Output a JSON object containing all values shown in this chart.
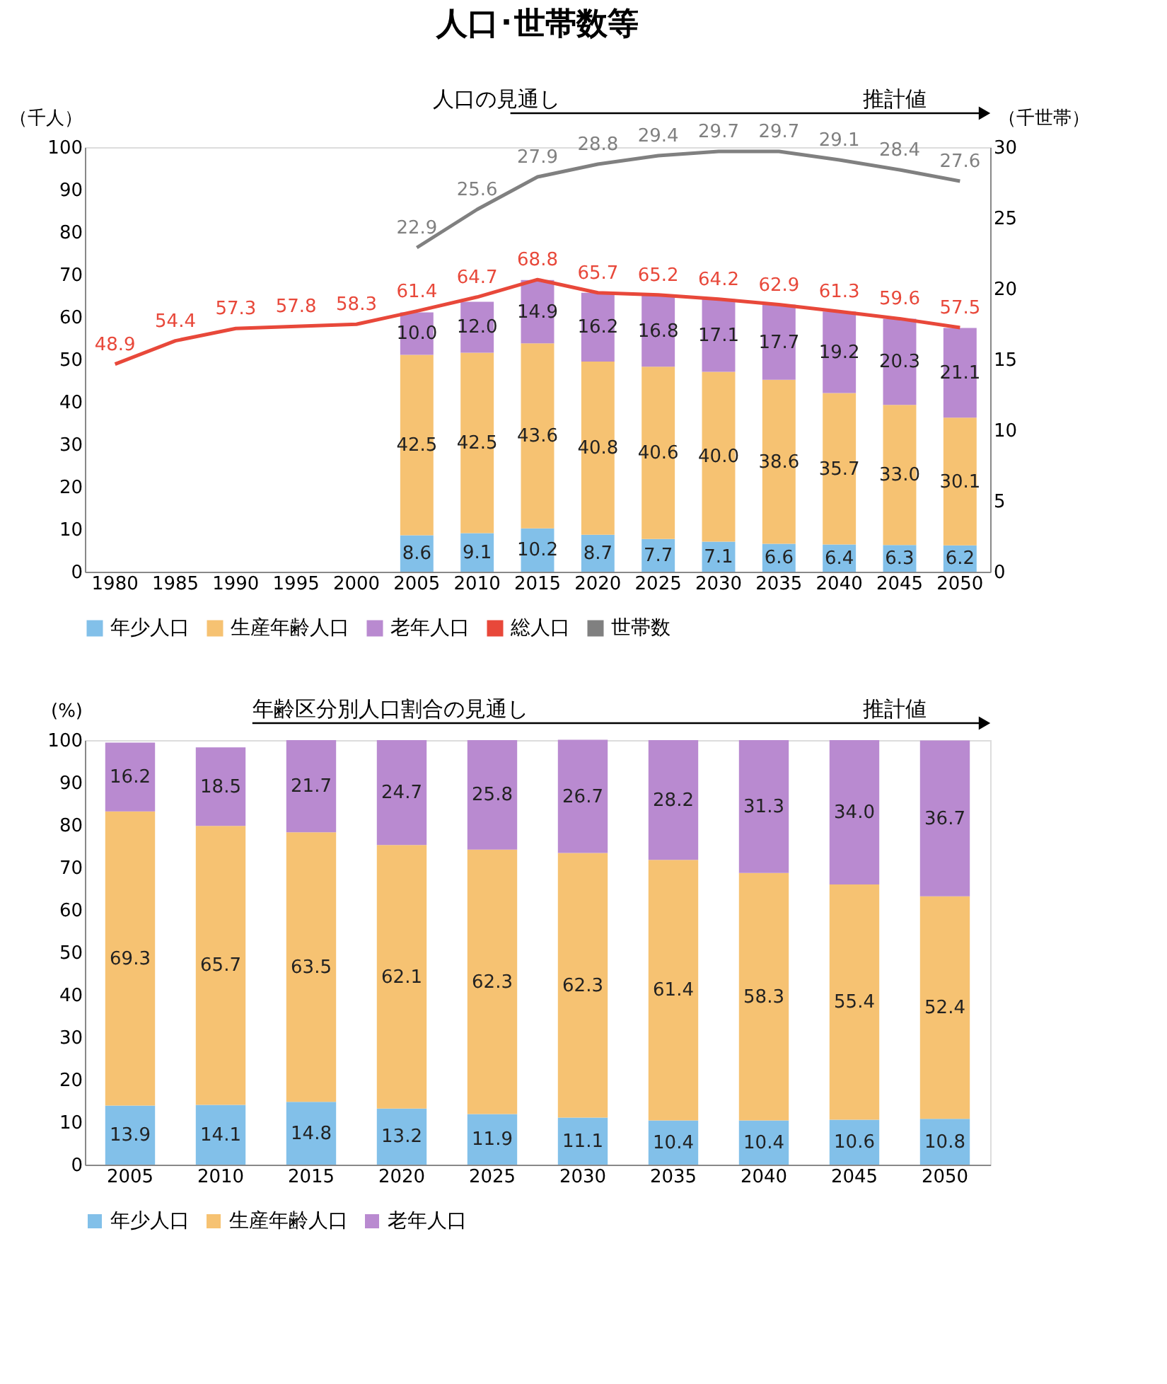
{
  "chart_data": [
    {
      "type": "bar",
      "title": "人口･世帯数等",
      "stacked": true,
      "legend": "bottom",
      "ylabel": "（千人）",
      "y2label": "（千世帯）",
      "categories": [
        "1980",
        "1985",
        "1990",
        "1995",
        "2000",
        "2005",
        "2010",
        "2015",
        "2020",
        "2025",
        "2030",
        "2035",
        "2040",
        "2045",
        "2050"
      ],
      "ylim": [
        0,
        100
      ],
      "yticks": [
        0,
        10,
        20,
        30,
        40,
        50,
        60,
        70,
        80,
        90,
        100
      ],
      "y2lim": [
        0,
        30
      ],
      "y2ticks": [
        0,
        5,
        10,
        15,
        20,
        25,
        30
      ],
      "annotations": [
        "人口の見通し",
        "推計値"
      ],
      "series": [
        {
          "name": "年少人口",
          "color": "#82c0e9",
          "values": [
            null,
            null,
            null,
            null,
            null,
            8.6,
            9.1,
            10.2,
            8.7,
            7.7,
            7.1,
            6.6,
            6.4,
            6.3,
            6.2
          ],
          "value_labels": [
            null,
            null,
            null,
            null,
            null,
            "8.6",
            "9.1",
            "10.2",
            "8.7",
            "7.7",
            "7.1",
            "6.6",
            "6.4",
            "6.3",
            "6.2"
          ]
        },
        {
          "name": "生産年齢人口",
          "color": "#f6c272",
          "values": [
            null,
            null,
            null,
            null,
            null,
            42.5,
            42.5,
            43.6,
            40.8,
            40.6,
            40.0,
            38.6,
            35.7,
            33.0,
            30.1
          ],
          "value_labels": [
            null,
            null,
            null,
            null,
            null,
            "42.5",
            "42.5",
            "43.6",
            "40.8",
            "40.6",
            "40.0",
            "38.6",
            "35.7",
            "33.0",
            "30.1"
          ]
        },
        {
          "name": "老年人口",
          "color": "#b98ad0",
          "values": [
            null,
            null,
            null,
            null,
            null,
            10.0,
            12.0,
            14.9,
            16.2,
            16.8,
            17.1,
            17.7,
            19.2,
            20.3,
            21.1
          ],
          "value_labels": [
            null,
            null,
            null,
            null,
            null,
            "10.0",
            "12.0",
            "14.9",
            "16.2",
            "16.8",
            "17.1",
            "17.7",
            "19.2",
            "20.3",
            "21.1"
          ]
        },
        {
          "name": "総人口",
          "type": "line",
          "color": "#e8483a",
          "values": [
            48.9,
            54.4,
            57.3,
            57.8,
            58.3,
            61.4,
            64.7,
            68.8,
            65.7,
            65.2,
            64.2,
            62.9,
            61.3,
            59.6,
            57.5
          ],
          "value_labels": [
            "48.9",
            "54.4",
            "57.3",
            "57.8",
            "58.3",
            "61.4",
            "64.7",
            "68.8",
            "65.7",
            "65.2",
            "64.2",
            "62.9",
            "61.3",
            "59.6",
            "57.5"
          ]
        },
        {
          "name": "世帯数",
          "type": "line",
          "axis": "y2",
          "color": "#808080",
          "values": [
            null,
            null,
            null,
            null,
            null,
            22.9,
            25.6,
            27.9,
            28.8,
            29.4,
            29.7,
            29.7,
            29.1,
            28.4,
            27.6
          ],
          "value_labels": [
            null,
            null,
            null,
            null,
            null,
            "22.9",
            "25.6",
            "27.9",
            "28.8",
            "29.4",
            "29.7",
            "29.7",
            "29.1",
            "28.4",
            "27.6"
          ]
        }
      ]
    },
    {
      "type": "bar",
      "stacked": true,
      "legend": "bottom",
      "ylabel": "(%)",
      "categories": [
        "2005",
        "2010",
        "2015",
        "2020",
        "2025",
        "2030",
        "2035",
        "2040",
        "2045",
        "2050"
      ],
      "ylim": [
        0,
        100
      ],
      "yticks": [
        0,
        10,
        20,
        30,
        40,
        50,
        60,
        70,
        80,
        90,
        100
      ],
      "annotations": [
        "年齢区分別人口割合の見通し",
        "推計値"
      ],
      "series": [
        {
          "name": "年少人口",
          "color": "#82c0e9",
          "values": [
            13.9,
            14.1,
            14.8,
            13.2,
            11.9,
            11.1,
            10.4,
            10.4,
            10.6,
            10.8
          ],
          "value_labels": [
            "13.9",
            "14.1",
            "14.8",
            "13.2",
            "11.9",
            "11.1",
            "10.4",
            "10.4",
            "10.6",
            "10.8"
          ]
        },
        {
          "name": "生産年齢人口",
          "color": "#f6c272",
          "values": [
            69.3,
            65.7,
            63.5,
            62.1,
            62.3,
            62.3,
            61.4,
            58.3,
            55.4,
            52.4
          ],
          "value_labels": [
            "69.3",
            "65.7",
            "63.5",
            "62.1",
            "62.3",
            "62.3",
            "61.4",
            "58.3",
            "55.4",
            "52.4"
          ]
        },
        {
          "name": "老年人口",
          "color": "#b98ad0",
          "values": [
            16.2,
            18.5,
            21.7,
            24.7,
            25.8,
            26.7,
            28.2,
            31.3,
            34.0,
            36.7
          ],
          "value_labels": [
            "16.2",
            "18.5",
            "21.7",
            "24.7",
            "25.8",
            "26.7",
            "28.2",
            "31.3",
            "34.0",
            "36.7"
          ]
        }
      ]
    }
  ]
}
